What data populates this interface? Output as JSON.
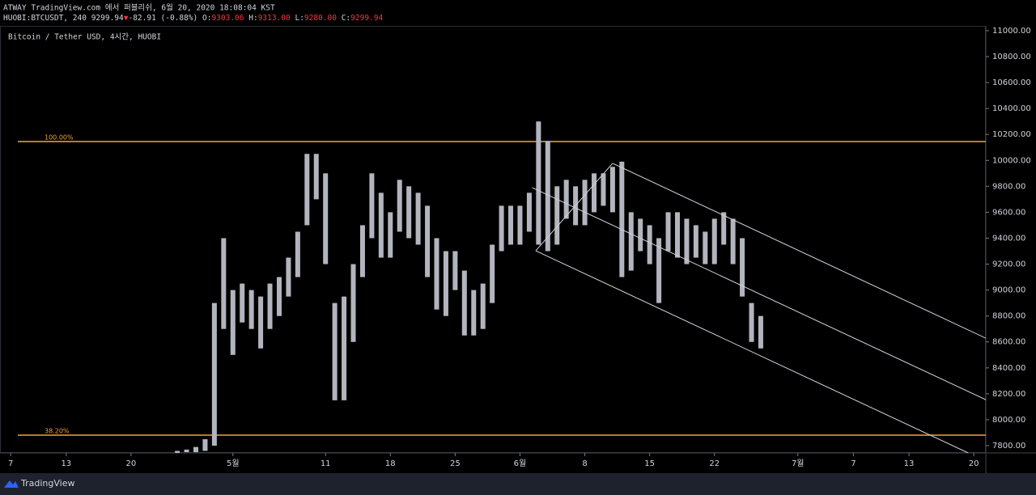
{
  "header": {
    "publisher": "ATWAY TradingView.com 에서 퍼블리쉬, 6월 20, 2020 18:08:04 KST",
    "symbol": "HUOBI:BTCUSDT, 240",
    "last": "9299.94",
    "arrow": "▼",
    "change": "-82.91 (-0.88%)",
    "o_label": "O:",
    "o": "9303.06",
    "h_label": "H:",
    "h": "9313.00",
    "l_label": "L:",
    "l": "9280.00",
    "c_label": "C:",
    "c": "9299.94"
  },
  "footer": {
    "brand": "TradingView"
  },
  "chart_data": {
    "type": "range-bar",
    "title": "Bitcoin / Tether USD, 4시간, HUOBI",
    "color": "#b2b5be",
    "x": [
      116,
      117,
      118,
      119,
      120,
      121,
      122,
      123,
      124,
      125,
      126,
      127,
      128,
      129,
      130,
      131,
      132,
      133,
      134,
      135,
      136,
      137,
      138,
      139,
      140,
      141,
      142,
      143,
      144,
      145,
      146,
      147,
      148,
      149,
      150,
      151,
      152,
      153,
      154,
      155,
      156,
      157,
      158,
      159,
      160,
      161,
      162,
      163,
      164,
      165,
      166,
      167,
      168,
      169,
      170,
      171,
      172,
      173,
      174,
      175,
      176,
      177,
      178,
      179
    ],
    "highs": [
      7760,
      7770,
      7790,
      7850,
      8900,
      9400,
      9000,
      9050,
      9000,
      8950,
      9050,
      9100,
      9250,
      9450,
      10050,
      10050,
      9900,
      8900,
      8950,
      9200,
      9500,
      9900,
      9750,
      9600,
      9850,
      9800,
      9750,
      9650,
      9400,
      9300,
      9300,
      9150,
      9000,
      9050,
      9350,
      9650,
      9650,
      9650,
      9750,
      10300,
      10150,
      9800,
      9850,
      9800,
      9850,
      9900,
      9900,
      9950,
      9990,
      9600,
      9550,
      9500,
      9400,
      9600,
      9600,
      9550,
      9500,
      9450,
      9550,
      9600,
      9550,
      9400,
      8900,
      8800
    ],
    "lows": [
      7740,
      7750,
      7750,
      7760,
      7800,
      8700,
      8500,
      8750,
      8700,
      8550,
      8700,
      8800,
      8950,
      9100,
      9500,
      9700,
      9200,
      8150,
      8150,
      8600,
      9100,
      9400,
      9250,
      9250,
      9450,
      9400,
      9350,
      9100,
      8850,
      8800,
      9000,
      8650,
      8650,
      8700,
      8900,
      9300,
      9350,
      9350,
      9450,
      9350,
      9300,
      9350,
      9550,
      9500,
      9500,
      9600,
      9650,
      9600,
      9100,
      9150,
      9300,
      9200,
      8900,
      9300,
      9250,
      9200,
      9250,
      9200,
      9200,
      9350,
      9200,
      8950,
      8600,
      8550
    ],
    "xlim": [
      96.85,
      203.3
    ],
    "ylim": [
      7744,
      11037
    ],
    "yticks": [
      {
        "value": 7800,
        "label": "7800.00"
      },
      {
        "value": 8000,
        "label": "8000.00"
      },
      {
        "value": 8200,
        "label": "8200.00"
      },
      {
        "value": 8400,
        "label": "8400.00"
      },
      {
        "value": 8600,
        "label": "8600.00"
      },
      {
        "value": 8800,
        "label": "8800.00"
      },
      {
        "value": 9000,
        "label": "9000.00"
      },
      {
        "value": 9200,
        "label": "9200.00"
      },
      {
        "value": 9400,
        "label": "9400.00"
      },
      {
        "value": 9600,
        "label": "9600.00"
      },
      {
        "value": 9800,
        "label": "9800.00"
      },
      {
        "value": 10000,
        "label": "10000.00"
      },
      {
        "value": 10200,
        "label": "10200.00"
      },
      {
        "value": 10400,
        "label": "10400.00"
      },
      {
        "value": 10600,
        "label": "10600.00"
      },
      {
        "value": 10800,
        "label": "10800.00"
      },
      {
        "value": 11000,
        "label": "11000.00"
      }
    ],
    "xticks": [
      {
        "value": 98,
        "label": "7"
      },
      {
        "value": 104,
        "label": "13"
      },
      {
        "value": 111,
        "label": "20"
      },
      {
        "value": 122,
        "label": "5월"
      },
      {
        "value": 132,
        "label": "11"
      },
      {
        "value": 139,
        "label": "18"
      },
      {
        "value": 146,
        "label": "25"
      },
      {
        "value": 153,
        "label": "6월"
      },
      {
        "value": 160,
        "label": "8"
      },
      {
        "value": 167,
        "label": "15"
      },
      {
        "value": 174,
        "label": "22"
      },
      {
        "value": 183,
        "label": "7월"
      },
      {
        "value": 189,
        "label": "7"
      },
      {
        "value": 195,
        "label": "13"
      },
      {
        "value": 202,
        "label": "20"
      }
    ],
    "levels": [
      {
        "label": "100.00%",
        "value": 10145,
        "color": "#f7a13a"
      },
      {
        "label": "38.20%",
        "value": 7881,
        "color": "#f7a13a"
      }
    ],
    "channel": {
      "color": "#d1d4dc",
      "lines": [
        {
          "x": [
            154.7,
            163.0
          ],
          "y": [
            9303,
            9977
          ]
        },
        {
          "x": [
            163.0,
            204.4
          ],
          "y": [
            9977,
            8592
          ]
        },
        {
          "x": [
            154.3,
            204.4
          ],
          "y": [
            9790,
            8118
          ]
        },
        {
          "x": [
            154.7,
            201.4
          ],
          "y": [
            9303,
            7744
          ]
        }
      ]
    }
  }
}
